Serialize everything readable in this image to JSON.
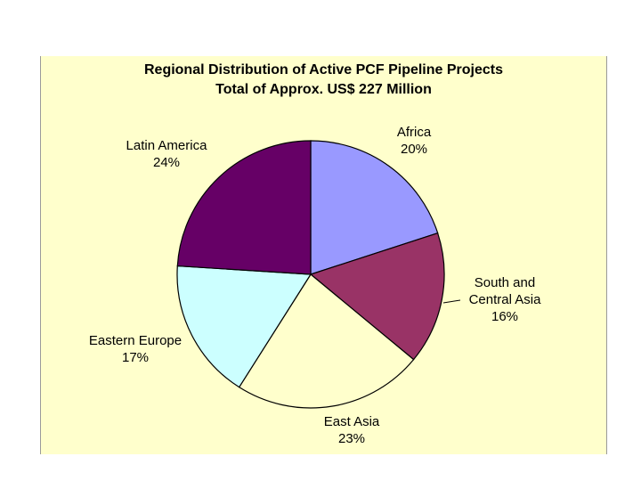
{
  "chart_data": {
    "type": "pie",
    "title": "Regional Distribution of Active PCF Pipeline Projects",
    "subtitle": "Total of Approx. US$ 227 Million",
    "slices": [
      {
        "label": "Africa",
        "value": 20,
        "value_label": "20%",
        "color": "#9999ff"
      },
      {
        "label": "South and Central Asia",
        "value_label": "16%",
        "value": 16,
        "color": "#993366",
        "label_lines": [
          "South and",
          "Central Asia"
        ]
      },
      {
        "label": "East Asia",
        "value": 23,
        "value_label": "23%",
        "color": "#ffffcc"
      },
      {
        "label": "Eastern Europe",
        "value": 17,
        "value_label": "17%",
        "color": "#ccffff"
      },
      {
        "label": "Latin America",
        "value": 24,
        "value_label": "24%",
        "color": "#660066"
      }
    ]
  }
}
